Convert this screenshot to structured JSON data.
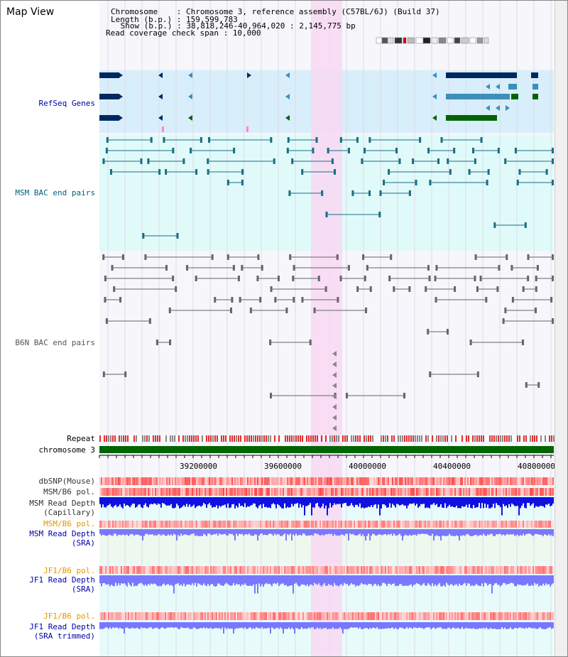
{
  "title": "Map View",
  "header": {
    "chromosome_line": "Chromosome    : Chromosome 3, reference assembly (C57BL/6J) (Build 37)",
    "length_line": "Length (b.p.) : 159,599,783",
    "show_line": " Show (b.p.) : 38,818,246-40,964,020 : 2,145,775 bp",
    "coverage_line": "Read coverage check span : 10,000"
  },
  "tracks": {
    "refseq": "RefSeq Genes",
    "msm_bac": "MSM BAC end pairs",
    "b6n_bac": "B6N BAC end pairs",
    "repeat": "Repeat",
    "chromosome": "chromosome 3",
    "dbsnp": "dbSNP(Mouse)",
    "msm_b6_pol": "MSM/B6 pol.",
    "msm_depth_cap_1": "MSM Read Depth",
    "msm_depth_cap_2": "(Capillary)",
    "msm_b6_pol_2": "MSM/B6 pol.",
    "msm_depth_sra_1": "MSM Read Depth",
    "msm_depth_sra_2": "(SRA)",
    "jf1_b6_pol": "JF1/B6 pol.",
    "jf1_depth_sra_1": "JF1 Read Depth",
    "jf1_depth_sra_2": "(SRA)",
    "jf1_b6_pol_2": "JF1/B6 pol.",
    "jf1_depth_trim_1": "JF1 Read Depth",
    "jf1_depth_trim_2": "(SRA trimmed)"
  },
  "axis": {
    "ticks": [
      "39200000",
      "39600000",
      "40000000",
      "40400000",
      "40800000"
    ]
  },
  "colors": {
    "refseq_bg": "#d8eefa",
    "bac_bg": "#e0fafa",
    "highlight": "#f8d8f2",
    "gene_dark": "#002860",
    "gene_mid": "#3b8fb8",
    "gene_green": "#006400",
    "msm_pair": "#1a6e80",
    "b6n_pair": "#666666",
    "repeat_red": "#e03030",
    "chrom_green": "#006400",
    "depth_blue": "#1010e0",
    "depth_light": "#7878ff",
    "label_blue": "#0000aa",
    "label_orange": "#e69500",
    "label_teal": "#00607a"
  }
}
